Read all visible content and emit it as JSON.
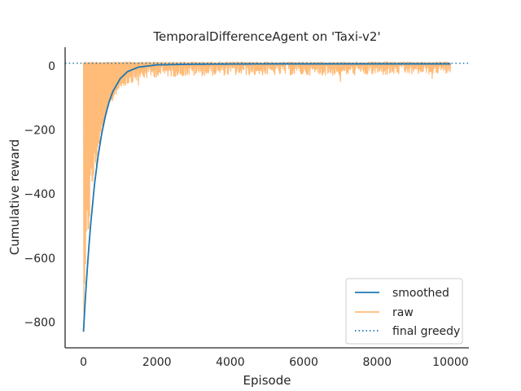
{
  "chart_data": {
    "type": "line",
    "title": "TemporalDifferenceAgent on 'Taxi-v2'",
    "xlabel": "Episode",
    "ylabel": "Cumulative reward",
    "xlim": [
      -500,
      10500
    ],
    "ylim": [
      -880,
      58
    ],
    "xticks": [
      0,
      2000,
      4000,
      6000,
      8000,
      10000
    ],
    "yticks": [
      0,
      -200,
      -400,
      -600,
      -800
    ],
    "grid": false,
    "legend_position": "lower-right",
    "series": [
      {
        "name": "smoothed",
        "style": "solid",
        "color": "#1f77b4",
        "x": [
          0,
          50,
          100,
          150,
          200,
          300,
          400,
          500,
          600,
          700,
          800,
          1000,
          1200,
          1500,
          2000,
          3000,
          5000,
          7000,
          10000
        ],
        "y": [
          -830,
          -728,
          -640,
          -560,
          -490,
          -370,
          -280,
          -210,
          -155,
          -112,
          -80,
          -40,
          -18,
          -4,
          3,
          5,
          6,
          6,
          6
        ]
      },
      {
        "name": "raw",
        "style": "solid",
        "color": "#ffbb78",
        "x_range": [
          0,
          10000
        ],
        "upper_envelope": 12,
        "lower_envelope": {
          "x": [
            0,
            50,
            100,
            150,
            200,
            300,
            500,
            800,
            1000,
            1500,
            2000,
            4000,
            6000,
            8000,
            10000
          ],
          "y": [
            -840,
            -600,
            -420,
            -330,
            -300,
            -260,
            -180,
            -110,
            -70,
            -45,
            -35,
            -30,
            -30,
            -30,
            -25
          ]
        },
        "notable_dips": [
          {
            "x": 7000,
            "y": -50
          },
          {
            "x": 1500,
            "y": -60
          },
          {
            "x": 9500,
            "y": -40
          }
        ]
      },
      {
        "name": "final greedy",
        "style": "dotted",
        "color": "#1f77b4",
        "value": 8
      }
    ]
  }
}
